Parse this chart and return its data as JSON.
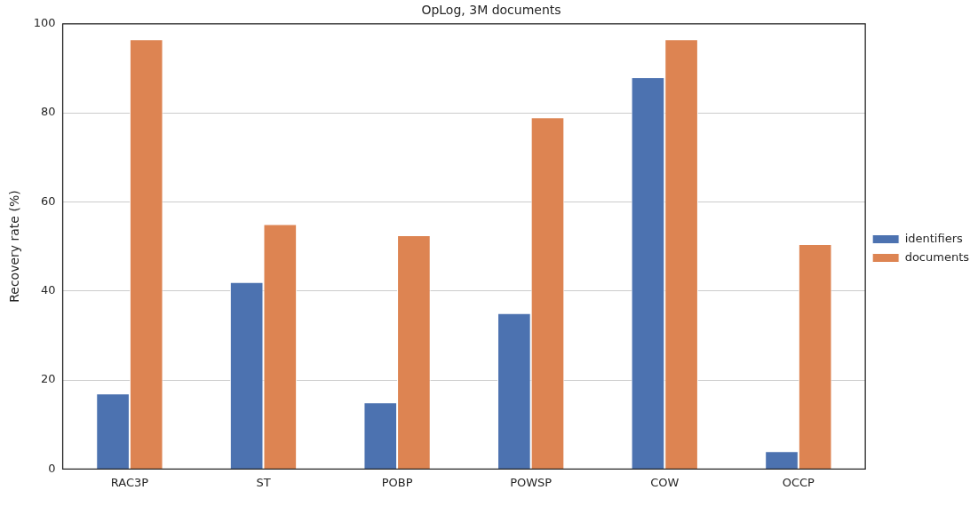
{
  "chart_data": {
    "type": "bar",
    "title": "OpLog, 3M documents",
    "ylabel": "Recovery rate (%)",
    "categories": [
      "RAC3P",
      "ST",
      "POBP",
      "POWSP",
      "COW",
      "OCCP"
    ],
    "series": [
      {
        "name": "identifiers",
        "color": "#4c72b0",
        "values": [
          17,
          42,
          15,
          35,
          88,
          4
        ]
      },
      {
        "name": "documents",
        "color": "#dd8452",
        "values": [
          96.5,
          55,
          52.5,
          79,
          96.5,
          50.5
        ]
      }
    ],
    "ylim": [
      0,
      100
    ],
    "yticks": [
      0,
      20,
      40,
      60,
      80,
      100
    ],
    "grid": "y",
    "legend": "right"
  }
}
